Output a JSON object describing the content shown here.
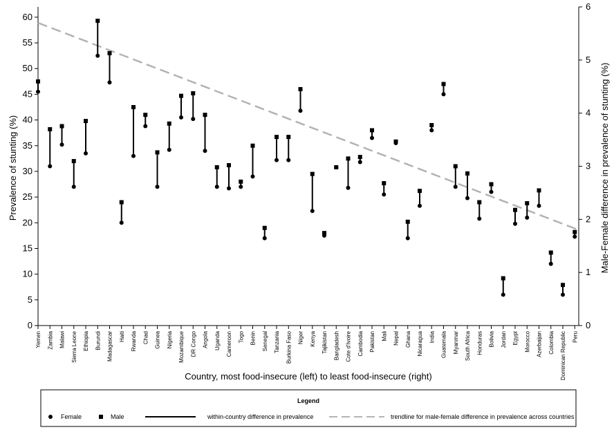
{
  "chart_data": {
    "type": "dumbbell",
    "xlabel": "Country, most food-insecure (left) to least food-insecure (right)",
    "ylabel": "Prevalence of stunting (%)",
    "y2label": "Male-Female difference in prevalence of stunting (%)",
    "ylim": [
      0,
      62
    ],
    "yticks": [
      0,
      5,
      10,
      15,
      20,
      25,
      30,
      35,
      40,
      45,
      50,
      55,
      60
    ],
    "y2lim": [
      0,
      6
    ],
    "y2ticks": [
      0,
      1,
      2,
      3,
      4,
      5,
      6
    ],
    "grid": false,
    "categories": [
      "Yemen",
      "Zambia",
      "Malawi",
      "Sierra Leone",
      "Ethiopia",
      "Burundi",
      "Madagascar",
      "Haiti",
      "Rwanda",
      "Chad",
      "Guinea",
      "Nigeria",
      "Mozambique",
      "DR Congo",
      "Angola",
      "Uganda",
      "Cameroon",
      "Togo",
      "Benin",
      "Senegal",
      "Tanzania",
      "Burkina Faso",
      "Niger",
      "Kenya",
      "Tajikistan",
      "Bangladesh",
      "Cote d'Ivoire",
      "Cambodia",
      "Pakistan",
      "Mali",
      "Nepal",
      "Ghana",
      "Nicaragua",
      "India",
      "Guatemala",
      "Myanmar",
      "South Africa",
      "Honduras",
      "Bolivia",
      "Jordan",
      "Egypt",
      "Morocco",
      "Azerbaijan",
      "Colombia",
      "Dominican Republic",
      "Peru"
    ],
    "series": [
      {
        "name": "Female",
        "marker": "circle",
        "values": [
          45.5,
          31,
          35.2,
          27,
          33.5,
          52.5,
          47.3,
          20,
          33,
          38.8,
          27,
          34.2,
          40.5,
          40.2,
          34,
          27,
          26.7,
          27,
          29,
          17,
          32.2,
          32.2,
          41.8,
          22.3,
          17.5,
          30.8,
          26.8,
          31.8,
          36.5,
          25.5,
          35.5,
          17,
          23.3,
          38,
          45,
          27,
          24.8,
          20.8,
          26,
          6,
          19.8,
          21,
          23.3,
          12,
          6,
          17.3
        ]
      },
      {
        "name": "Male",
        "marker": "square",
        "values": [
          47.5,
          38.2,
          38.8,
          32,
          39.8,
          59.3,
          53,
          24,
          42.5,
          41,
          33.7,
          39.3,
          44.7,
          45.2,
          41,
          30.8,
          31.2,
          28,
          35,
          19,
          36.7,
          36.7,
          46,
          29.5,
          18,
          30.8,
          32.5,
          32.8,
          38,
          27.7,
          35.8,
          20.2,
          26.2,
          39,
          47,
          31,
          29.6,
          24,
          27.5,
          9.2,
          22.5,
          23.8,
          26.3,
          14.2,
          7.9,
          18.2
        ]
      }
    ],
    "trendline": {
      "name": "trendline for male-female difference in prevalence across countries",
      "axis": "secondary",
      "start": 5.7,
      "end": 1.8
    },
    "legend": {
      "title": "Legend",
      "position": "bottom",
      "female": "Female",
      "male": "Male",
      "line": "within-country difference in prevalence",
      "trend": "trendline for male-female difference in prevalence across countries"
    },
    "colors": {
      "marker": "#000000",
      "trend": "#b3b3b3",
      "axis": "#000000"
    }
  }
}
